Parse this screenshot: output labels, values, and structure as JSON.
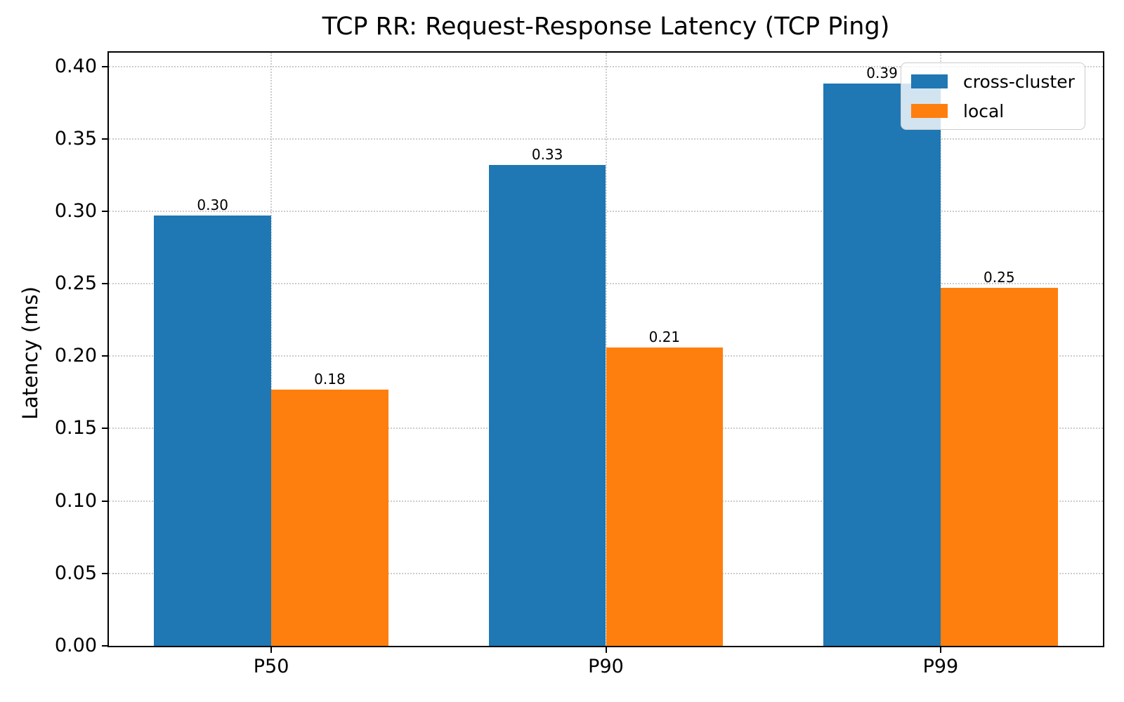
{
  "chart_data": {
    "type": "bar",
    "title": "TCP RR: Request-Response Latency (TCP Ping)",
    "xlabel": "",
    "ylabel": "Latency (ms)",
    "categories": [
      "P50",
      "P90",
      "P99"
    ],
    "series": [
      {
        "name": "cross-cluster",
        "color": "#1f77b4",
        "values": [
          0.297,
          0.332,
          0.388
        ],
        "bar_labels": [
          "0.30",
          "0.33",
          "0.39"
        ]
      },
      {
        "name": "local",
        "color": "#ff7f0e",
        "values": [
          0.177,
          0.206,
          0.247
        ],
        "bar_labels": [
          "0.18",
          "0.21",
          "0.25"
        ]
      }
    ],
    "ylim": [
      0,
      0.4095
    ],
    "xlim": [
      -0.485,
      2.485
    ],
    "bar_width": 0.35,
    "yticks": {
      "values": [
        0,
        0.05,
        0.1,
        0.15,
        0.2,
        0.25,
        0.3,
        0.35,
        0.4
      ],
      "labels": [
        "0.00",
        "0.05",
        "0.10",
        "0.15",
        "0.20",
        "0.25",
        "0.30",
        "0.35",
        "0.40"
      ]
    },
    "grid": true,
    "grid_style": "dotted",
    "legend": {
      "position": "upper right"
    }
  }
}
